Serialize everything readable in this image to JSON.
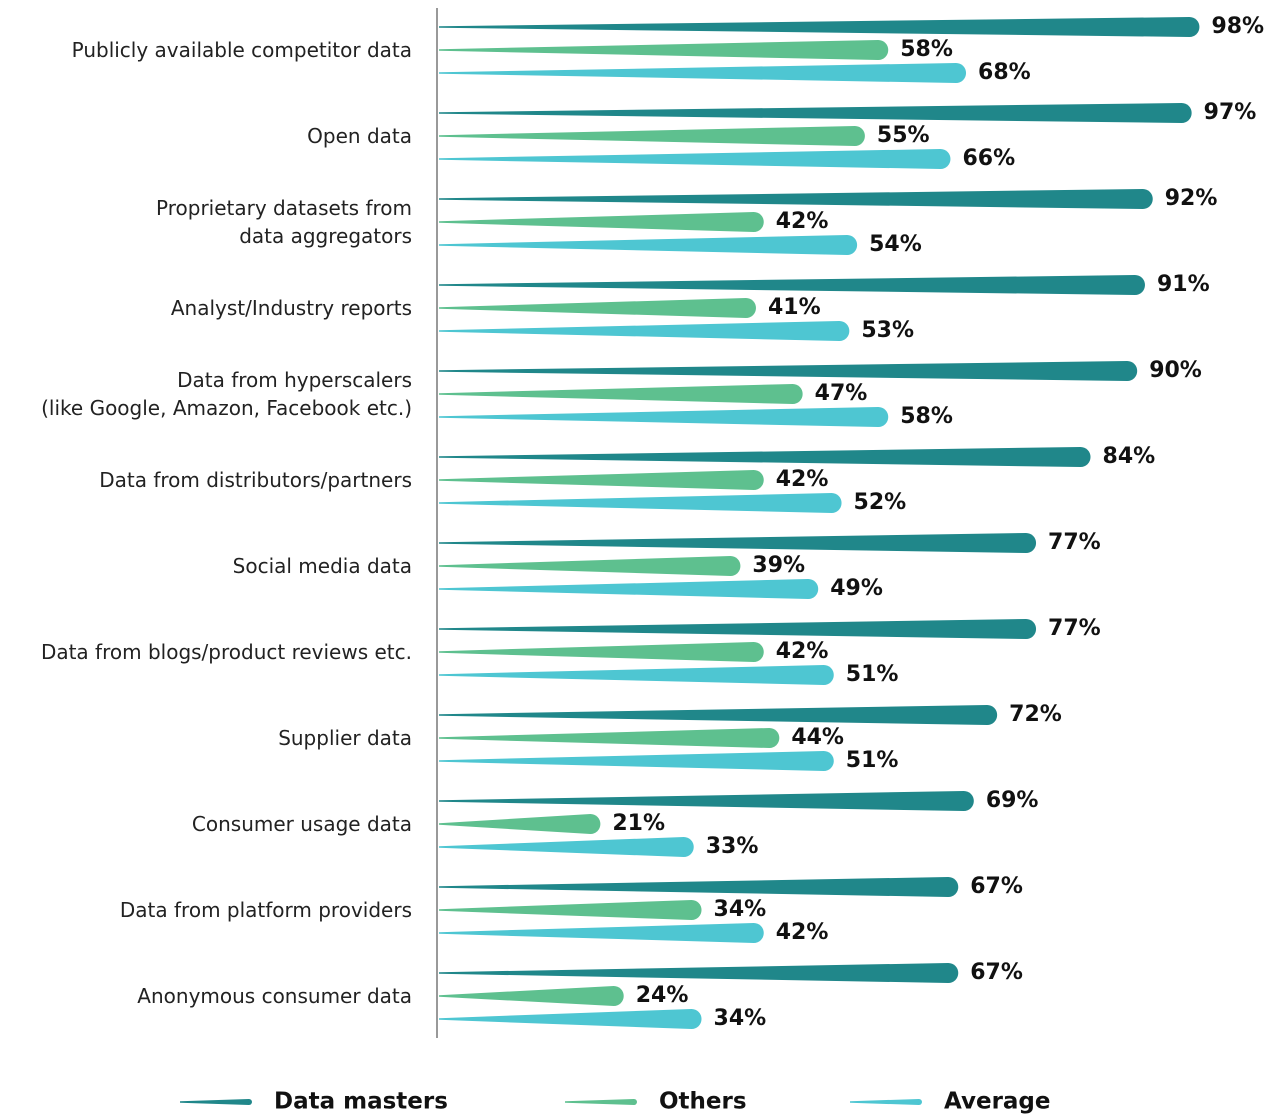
{
  "chart_data": {
    "type": "bar",
    "orientation": "horizontal",
    "categories": [
      "Publicly available competitor data",
      "Open data",
      "Proprietary datasets from \ndata aggregators",
      "Analyst/Industry reports",
      "Data from hyperscalers \n(like Google, Amazon, Facebook etc.)",
      "Data from distributors/partners",
      "Social media data",
      "Data from blogs/product reviews etc.",
      "Supplier data",
      "Consumer usage data",
      "Data from platform providers",
      "Anonymous consumer data"
    ],
    "series": [
      {
        "name": "Data masters",
        "color": "#20878a",
        "values": [
          98,
          97,
          92,
          91,
          90,
          84,
          77,
          77,
          72,
          69,
          67,
          67
        ],
        "value_labels": [
          "98%",
          "97%",
          "92%",
          "91%",
          "90%",
          "84%",
          "77%",
          "77%",
          "72%",
          "69%",
          "67%",
          "67%"
        ]
      },
      {
        "name": "Others",
        "color": "#5ec08f",
        "values": [
          58,
          55,
          42,
          41,
          47,
          42,
          39,
          42,
          44,
          21,
          34,
          24
        ],
        "value_labels": [
          "58%",
          "55%",
          "42%",
          "41%",
          "47%",
          "42%",
          "39%",
          "42%",
          "44%",
          "21%",
          "34%",
          "24%"
        ]
      },
      {
        "name": "Average",
        "color": "#4ec6d2",
        "values": [
          68,
          66,
          54,
          53,
          58,
          52,
          49,
          51,
          51,
          33,
          42,
          34
        ],
        "value_labels": [
          "68%",
          "66%",
          "54%",
          "53%",
          "58%",
          "52%",
          "49%",
          "51%",
          "51%",
          "33%",
          "42%",
          "34%"
        ]
      }
    ],
    "xlim": [
      0,
      100
    ],
    "legend": "bottom"
  }
}
